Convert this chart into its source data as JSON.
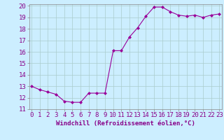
{
  "x": [
    0,
    1,
    2,
    3,
    4,
    5,
    6,
    7,
    8,
    9,
    10,
    11,
    12,
    13,
    14,
    15,
    16,
    17,
    18,
    19,
    20,
    21,
    22,
    23
  ],
  "y": [
    13.0,
    12.7,
    12.5,
    12.3,
    11.7,
    11.6,
    11.6,
    12.4,
    12.4,
    12.4,
    16.1,
    16.1,
    17.3,
    18.1,
    19.1,
    19.9,
    19.9,
    19.5,
    19.2,
    19.1,
    19.2,
    19.0,
    19.2,
    19.3
  ],
  "line_color": "#990099",
  "marker": "D",
  "marker_size": 2.0,
  "bg_color": "#cceeff",
  "grid_color": "#aacccc",
  "xlabel": "Windchill (Refroidissement éolien,°C)",
  "ylim": [
    11,
    20
  ],
  "xlim_min": -0.3,
  "xlim_max": 23.3,
  "yticks": [
    11,
    12,
    13,
    14,
    15,
    16,
    17,
    18,
    19,
    20
  ],
  "xticks": [
    0,
    1,
    2,
    3,
    4,
    5,
    6,
    7,
    8,
    9,
    10,
    11,
    12,
    13,
    14,
    15,
    16,
    17,
    18,
    19,
    20,
    21,
    22,
    23
  ],
  "xlabel_fontsize": 6.5,
  "tick_fontsize": 6.5,
  "label_color": "#880088",
  "spine_color": "#888888"
}
